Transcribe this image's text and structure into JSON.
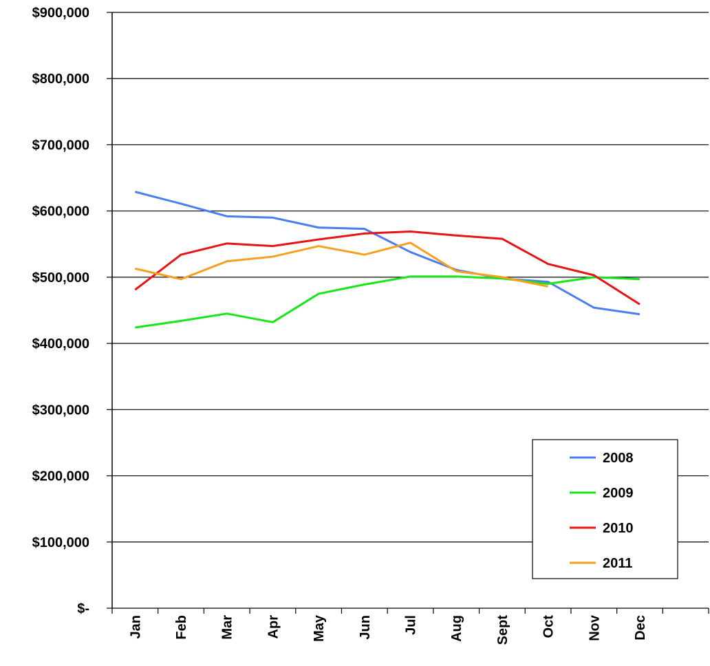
{
  "chart_data": {
    "type": "line",
    "categories": [
      "Jan",
      "Feb",
      "Mar",
      "Apr",
      "May",
      "Jun",
      "Jul",
      "Aug",
      "Sept",
      "Oct",
      "Nov",
      "Dec",
      null
    ],
    "series": [
      {
        "name": "2008",
        "color": "#4a7ef0",
        "values": [
          629000,
          611000,
          592000,
          590000,
          575000,
          573000,
          538000,
          511000,
          498000,
          493000,
          454000,
          444000,
          null
        ]
      },
      {
        "name": "2009",
        "color": "#19e619",
        "values": [
          424000,
          434000,
          445000,
          432000,
          475000,
          489000,
          501000,
          501000,
          498000,
          490000,
          500000,
          497000,
          null
        ]
      },
      {
        "name": "2010",
        "color": "#e61414",
        "values": [
          481000,
          534000,
          551000,
          547000,
          557000,
          566000,
          569000,
          563000,
          558000,
          520000,
          503000,
          459000,
          null
        ]
      },
      {
        "name": "2011",
        "color": "#f5a01e",
        "values": [
          513000,
          497000,
          524000,
          531000,
          547000,
          534000,
          552000,
          509000,
          500000,
          486000,
          null,
          null,
          null
        ]
      }
    ],
    "ylim": [
      0,
      900000
    ],
    "yticks": [
      {
        "value": 0,
        "label": "$-"
      },
      {
        "value": 100000,
        "label": "$100,000"
      },
      {
        "value": 200000,
        "label": "$200,000"
      },
      {
        "value": 300000,
        "label": "$300,000"
      },
      {
        "value": 400000,
        "label": "$400,000"
      },
      {
        "value": 500000,
        "label": "$500,000"
      },
      {
        "value": 600000,
        "label": "$600,000"
      },
      {
        "value": 700000,
        "label": "$700,000"
      },
      {
        "value": 800000,
        "label": "$800,000"
      },
      {
        "value": 900000,
        "label": "$900,000"
      }
    ],
    "grid": true,
    "legend": "lower-right"
  }
}
